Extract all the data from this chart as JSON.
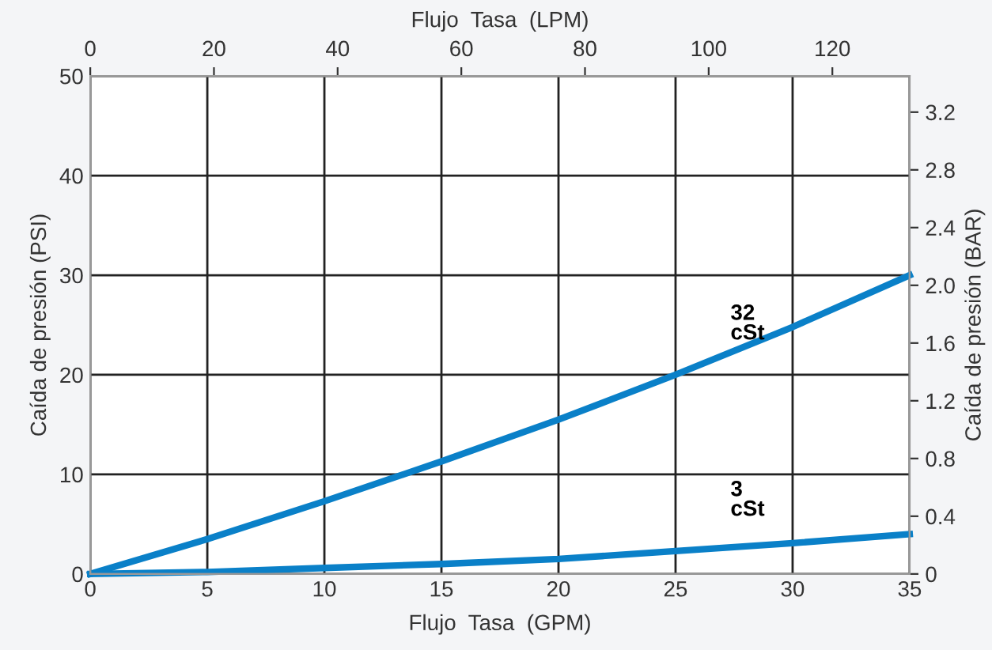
{
  "chart_data": {
    "type": "line",
    "xlabel": "Flujo  Tasa  (GPM)",
    "ylabel": "Caída de presión (PSI)",
    "y2label": "Caída de presión (BAR)",
    "x2label": "Flujo  Tasa  (LPM)",
    "x": [
      0,
      5,
      10,
      15,
      20,
      25,
      30,
      35
    ],
    "xlim": [
      0,
      35
    ],
    "xticks": [
      0,
      5,
      10,
      15,
      20,
      25,
      30,
      35
    ],
    "ylim": [
      0,
      50
    ],
    "yticks": [
      0,
      10,
      20,
      30,
      40,
      50
    ],
    "x2lim": [
      0,
      132.5
    ],
    "x2ticks": [
      0,
      20,
      40,
      60,
      80,
      100,
      120
    ],
    "y2lim": [
      0,
      3.45
    ],
    "y2ticks": [
      0,
      0.4,
      0.8,
      1.2,
      1.6,
      {
        "value": 2,
        "label": "2.0"
      },
      2.4,
      2.8,
      3.2
    ],
    "grid": true,
    "legend": false,
    "marker": "none",
    "line_style": "solid",
    "series": [
      {
        "name": "32\ncSt",
        "color": "#0a80c8",
        "values": [
          0,
          3.5,
          7.3,
          11.3,
          15.5,
          20,
          24.8,
          30
        ]
      },
      {
        "name": "3\ncSt",
        "color": "#0a80c8",
        "values": [
          0,
          0.2,
          0.6,
          1.0,
          1.5,
          2.3,
          3.1,
          4.0
        ]
      }
    ]
  }
}
